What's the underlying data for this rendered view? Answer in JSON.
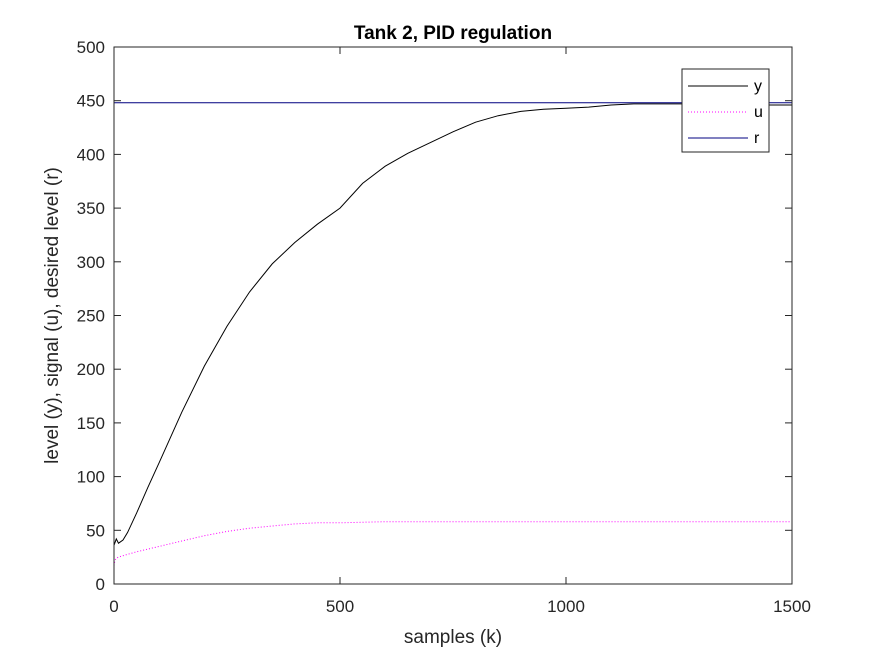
{
  "chart_data": {
    "type": "line",
    "title": "Tank 2, PID regulation",
    "xlabel": "samples (k)",
    "ylabel": "level (y), signal (u), desired level (r)",
    "xlim": [
      0,
      1500
    ],
    "ylim": [
      0,
      500
    ],
    "xticks": [
      0,
      500,
      1000,
      1500
    ],
    "yticks": [
      0,
      50,
      100,
      150,
      200,
      250,
      300,
      350,
      400,
      450,
      500
    ],
    "xtick_labels": [
      "0",
      "500",
      "1000",
      "1500"
    ],
    "ytick_labels": [
      "0",
      "50",
      "100",
      "150",
      "200",
      "250",
      "300",
      "350",
      "400",
      "450",
      "500"
    ],
    "grid": false,
    "legend_position": "top-right",
    "series": [
      {
        "name": "y",
        "color": "#000000",
        "style": "solid",
        "x": [
          0,
          5,
          10,
          20,
          30,
          50,
          75,
          100,
          150,
          200,
          250,
          300,
          350,
          400,
          450,
          500,
          550,
          600,
          650,
          700,
          750,
          800,
          850,
          900,
          950,
          1000,
          1050,
          1100,
          1150,
          1200,
          1250,
          1300,
          1350,
          1400,
          1450,
          1500
        ],
        "values": [
          36,
          42,
          38,
          41,
          48,
          66,
          90,
          113,
          160,
          203,
          240,
          272,
          298,
          318,
          335,
          350,
          373,
          389,
          401,
          411,
          421,
          430,
          436,
          440,
          442,
          443,
          444,
          446,
          447,
          447,
          447,
          447,
          446,
          446,
          446,
          446
        ]
      },
      {
        "name": "u",
        "color": "#ff00ff",
        "style": "dotted",
        "x": [
          0,
          2,
          5,
          10,
          25,
          50,
          100,
          150,
          200,
          250,
          300,
          350,
          400,
          450,
          500,
          600,
          700,
          800,
          900,
          1000,
          1100,
          1200,
          1300,
          1400,
          1500
        ],
        "values": [
          17,
          22,
          24,
          25,
          27,
          30,
          35,
          40,
          45,
          49,
          52,
          54,
          56,
          57,
          57,
          58,
          58,
          58,
          58,
          58,
          58,
          58,
          58,
          58,
          58
        ]
      },
      {
        "name": "r",
        "color": "#000080",
        "style": "solid",
        "x": [
          0,
          1500
        ],
        "values": [
          448,
          448
        ]
      }
    ]
  }
}
